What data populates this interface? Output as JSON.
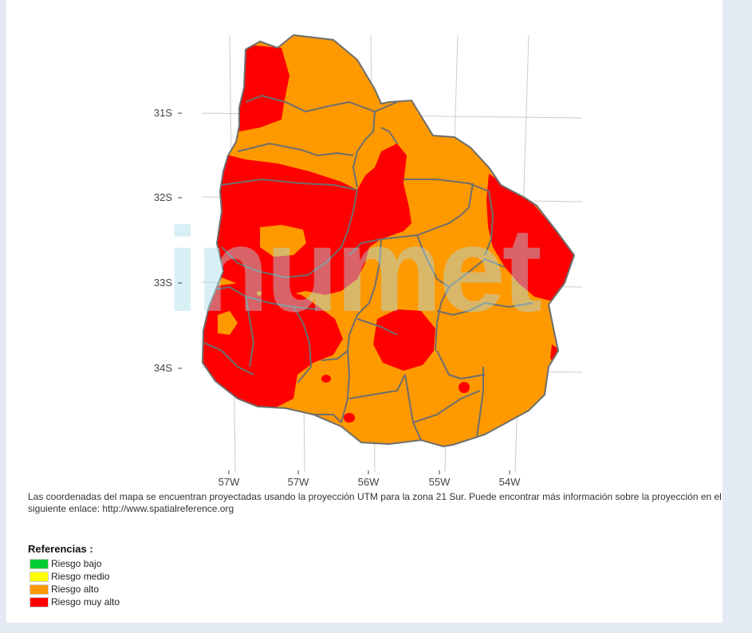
{
  "map": {
    "axis": {
      "y_labels": [
        "31S",
        "32S",
        "33S",
        "34S"
      ],
      "x_labels": [
        "57W",
        "57W",
        "56W",
        "55W",
        "54W"
      ]
    },
    "colors": {
      "riesgo_bajo": "#00cc33",
      "riesgo_medio": "#ffff00",
      "riesgo_alto": "#ff9900",
      "riesgo_muy_alto": "#ff0000",
      "boundary": "#6e6e6e",
      "watermark": "#a8dce8"
    },
    "watermark_text": "inumet"
  },
  "note": {
    "text": "Las coordenadas del mapa se encuentran proyectadas usando la proyección UTM para la zona 21 Sur. Puede encontrar más información sobre la proyección en el siguiente enlace: ",
    "link": "http://www.spatialreference.org"
  },
  "legend": {
    "title": "Referencias :",
    "items": [
      {
        "label": "Riesgo bajo",
        "color": "#00cc33"
      },
      {
        "label": "Riesgo medio",
        "color": "#ffff00"
      },
      {
        "label": "Riesgo alto",
        "color": "#ff9900"
      },
      {
        "label": "Riesgo muy alto",
        "color": "#ff0000"
      }
    ]
  }
}
